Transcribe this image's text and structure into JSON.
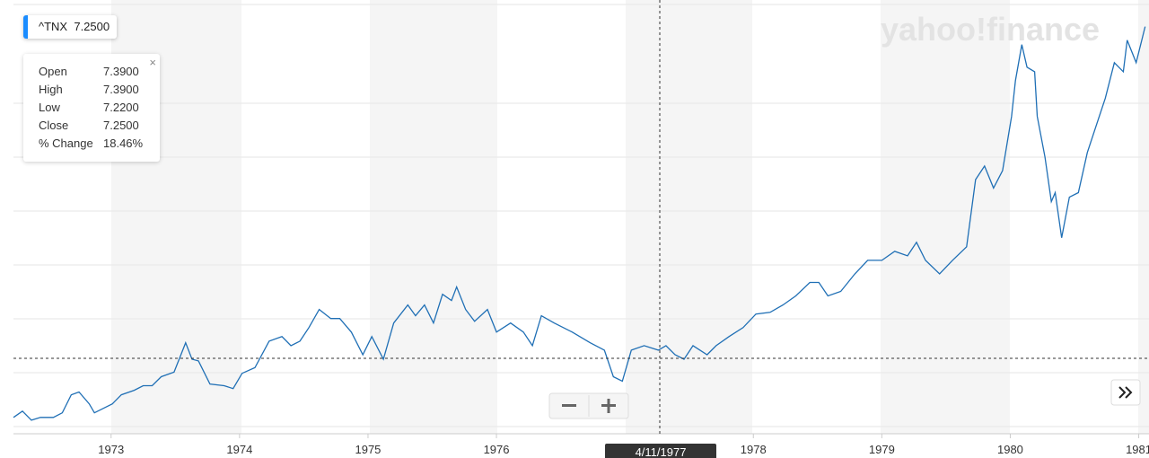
{
  "header": {
    "symbol": "^TNX",
    "price": "7.2500"
  },
  "logo": "yahoo!finance",
  "tooltip": {
    "rows": [
      [
        "Open",
        "7.3900"
      ],
      [
        "High",
        "7.3900"
      ],
      [
        "Low",
        "7.2200"
      ],
      [
        "Close",
        "7.2500"
      ],
      [
        "% Change",
        "18.46%"
      ]
    ]
  },
  "crosshair_date": "4/11/1977",
  "chart_data": {
    "type": "line",
    "color": "#1f6fb5",
    "xlim": [
      1972.24,
      1981.08
    ],
    "ylim": [
      5.91,
      13.59
    ],
    "xticks": [
      1973,
      1974,
      1975,
      1976,
      1978,
      1979,
      1980,
      1981
    ],
    "x": [
      1972.24,
      1972.31,
      1972.38,
      1972.45,
      1972.55,
      1972.62,
      1972.69,
      1972.75,
      1972.83,
      1972.87,
      1972.94,
      1973.01,
      1973.08,
      1973.18,
      1973.25,
      1973.32,
      1973.39,
      1973.49,
      1973.58,
      1973.63,
      1973.68,
      1973.77,
      1973.88,
      1973.95,
      1974.02,
      1974.12,
      1974.23,
      1974.33,
      1974.4,
      1974.47,
      1974.54,
      1974.62,
      1974.71,
      1974.78,
      1974.87,
      1974.96,
      1975.03,
      1975.12,
      1975.2,
      1975.31,
      1975.37,
      1975.44,
      1975.51,
      1975.58,
      1975.65,
      1975.69,
      1975.76,
      1975.83,
      1975.93,
      1976.0,
      1976.11,
      1976.21,
      1976.28,
      1976.35,
      1976.45,
      1976.59,
      1976.73,
      1976.84,
      1976.91,
      1976.98,
      1977.05,
      1977.15,
      1977.26,
      1977.32,
      1977.39,
      1977.46,
      1977.53,
      1977.64,
      1977.71,
      1977.81,
      1977.92,
      1978.02,
      1978.13,
      1978.23,
      1978.33,
      1978.44,
      1978.51,
      1978.58,
      1978.68,
      1978.79,
      1978.89,
      1979.0,
      1979.1,
      1979.2,
      1979.27,
      1979.34,
      1979.45,
      1979.55,
      1979.66,
      1979.73,
      1979.8,
      1979.87,
      1979.94,
      1980.01,
      1980.04,
      1980.09,
      1980.13,
      1980.19,
      1980.21,
      1980.27,
      1980.32,
      1980.35,
      1980.4,
      1980.46,
      1980.53,
      1980.6,
      1980.67,
      1980.74,
      1980.81,
      1980.88,
      1980.91,
      1980.98,
      1981.05
    ],
    "values": [
      6.2,
      6.31,
      6.15,
      6.2,
      6.2,
      6.28,
      6.6,
      6.65,
      6.44,
      6.28,
      6.36,
      6.44,
      6.6,
      6.68,
      6.76,
      6.76,
      6.92,
      7.0,
      7.52,
      7.23,
      7.2,
      6.79,
      6.76,
      6.71,
      6.98,
      7.08,
      7.55,
      7.63,
      7.47,
      7.55,
      7.79,
      8.11,
      7.95,
      7.95,
      7.71,
      7.31,
      7.63,
      7.23,
      7.87,
      8.19,
      8.0,
      8.19,
      7.87,
      8.38,
      8.27,
      8.51,
      8.11,
      7.9,
      8.11,
      7.71,
      7.87,
      7.71,
      7.47,
      8.0,
      7.87,
      7.71,
      7.52,
      7.39,
      6.92,
      6.84,
      7.39,
      7.47,
      7.39,
      7.47,
      7.31,
      7.23,
      7.47,
      7.31,
      7.47,
      7.63,
      7.79,
      8.03,
      8.06,
      8.19,
      8.35,
      8.59,
      8.59,
      8.35,
      8.43,
      8.74,
      8.98,
      8.98,
      9.14,
      9.06,
      9.3,
      8.98,
      8.74,
      8.98,
      9.22,
      10.41,
      10.65,
      10.26,
      10.57,
      11.53,
      12.16,
      12.8,
      12.4,
      12.32,
      11.53,
      10.81,
      10.02,
      10.18,
      9.38,
      10.1,
      10.18,
      10.89,
      11.37,
      11.85,
      12.48,
      12.32,
      12.88,
      12.48,
      13.12
    ]
  }
}
